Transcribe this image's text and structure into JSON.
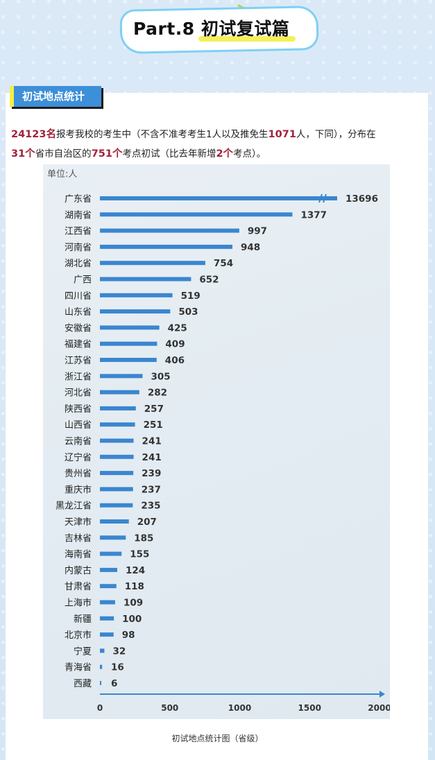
{
  "header": {
    "title": "Part.8 初试复试篇"
  },
  "section": {
    "tag": "初试地点统计"
  },
  "intro": {
    "p1": "24123名",
    "p2": "报考我校的考生中（不含不准考考生1人以及推免生",
    "p3": "1071",
    "p4": "人，下同），分布在",
    "p5": "31个",
    "p6": "省市自治区的",
    "p7": "751个",
    "p8": "考点初试（比去年新增",
    "p9": "2个",
    "p10": "考点）。"
  },
  "caption": "初试地点统计图（省级）",
  "colors": {
    "bar": "#3b86cf",
    "highlight": "#a3213a",
    "accent": "#3d8fd8"
  },
  "chart_data": {
    "type": "bar",
    "orientation": "horizontal",
    "unit_label": "单位:人",
    "categories": [
      "广东省",
      "湖南省",
      "江西省",
      "河南省",
      "湖北省",
      "广西",
      "四川省",
      "山东省",
      "安徽省",
      "福建省",
      "江苏省",
      "浙江省",
      "河北省",
      "陕西省",
      "山西省",
      "云南省",
      "辽宁省",
      "贵州省",
      "重庆市",
      "黑龙江省",
      "天津市",
      "吉林省",
      "海南省",
      "内蒙古",
      "甘肃省",
      "上海市",
      "新疆",
      "北京市",
      "宁夏",
      "青海省",
      "西藏"
    ],
    "values": [
      13696,
      1377,
      997,
      948,
      754,
      652,
      519,
      503,
      425,
      409,
      406,
      305,
      282,
      257,
      251,
      241,
      241,
      239,
      237,
      235,
      207,
      185,
      155,
      124,
      118,
      109,
      100,
      98,
      32,
      16,
      6
    ],
    "xlim": [
      0,
      2000
    ],
    "xticks": [
      "0",
      "500",
      "1000",
      "1500",
      "2000"
    ],
    "axis_break": true
  }
}
